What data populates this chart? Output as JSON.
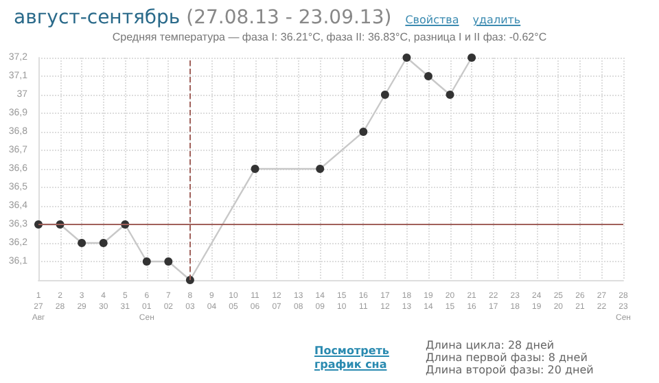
{
  "chart_data": {
    "type": "line",
    "title": "август-сентябрь (27.08.13 - 23.09.13)",
    "subtitle": "Средняя температура — фаза I: 36.21°C, фаза II: 36.83°C, разница I и II фаз: -0.62°C",
    "categories": [
      "1\n27\nАвг",
      "2\n28",
      "3\n29",
      "4\n30",
      "5\n31",
      "6\n01\nСен",
      "7\n02",
      "8\n03",
      "9\n04",
      "10\n05",
      "11\n06",
      "12\n07",
      "13\n08",
      "14\n09",
      "15\n10",
      "16\n11",
      "17\n12",
      "18\n13",
      "19\n14",
      "20\n15",
      "21\n16",
      "22\n17",
      "23\n18",
      "24\n19",
      "25\n20",
      "26\n21",
      "27\n22",
      "28\n23\nСен"
    ],
    "series": [
      {
        "color": "#c8c8c8",
        "values": [
          36.3,
          36.3,
          36.2,
          36.2,
          36.3,
          36.1,
          36.1,
          36.0,
          null,
          null,
          36.6,
          null,
          null,
          36.6,
          null,
          36.8,
          37.0,
          37.2,
          37.1,
          37.0,
          37.2,
          null,
          null,
          null,
          null,
          null,
          null,
          null
        ]
      }
    ],
    "ylim": [
      36.0,
      37.2
    ],
    "yticks": [
      {
        "value": 36.0,
        "label": null
      },
      {
        "value": 36.1,
        "label": "36,1"
      },
      {
        "value": 36.2,
        "label": "36,2"
      },
      {
        "value": 36.3,
        "label": "36,3"
      },
      {
        "value": 36.4,
        "label": "36,4"
      },
      {
        "value": 36.5,
        "label": "36,5"
      },
      {
        "value": 36.6,
        "label": "36,6"
      },
      {
        "value": 36.7,
        "label": "36,7"
      },
      {
        "value": 36.8,
        "label": "36,8"
      },
      {
        "value": 36.9,
        "label": "36,9"
      },
      {
        "value": 37.0,
        "label": "37"
      },
      {
        "value": 37.1,
        "label": "37,1"
      },
      {
        "value": 37.2,
        "label": "37,2"
      }
    ],
    "ref_lines": [
      {
        "axis": "y",
        "value": 36.3,
        "color": "#a0605a",
        "line_style": "solid"
      },
      {
        "axis": "x",
        "value": "8\n03",
        "color": "#a0605a",
        "line_style": "dashed"
      }
    ],
    "grid": true,
    "marker": "circle",
    "line_style": "solid",
    "annotations": [
      "Свойства",
      "удалить",
      "Посмотреть график сна",
      "Длина цикла: 28 дней",
      "Длина первой фазы: 8 дней",
      "Длина второй фазы: 20 дней"
    ]
  }
}
